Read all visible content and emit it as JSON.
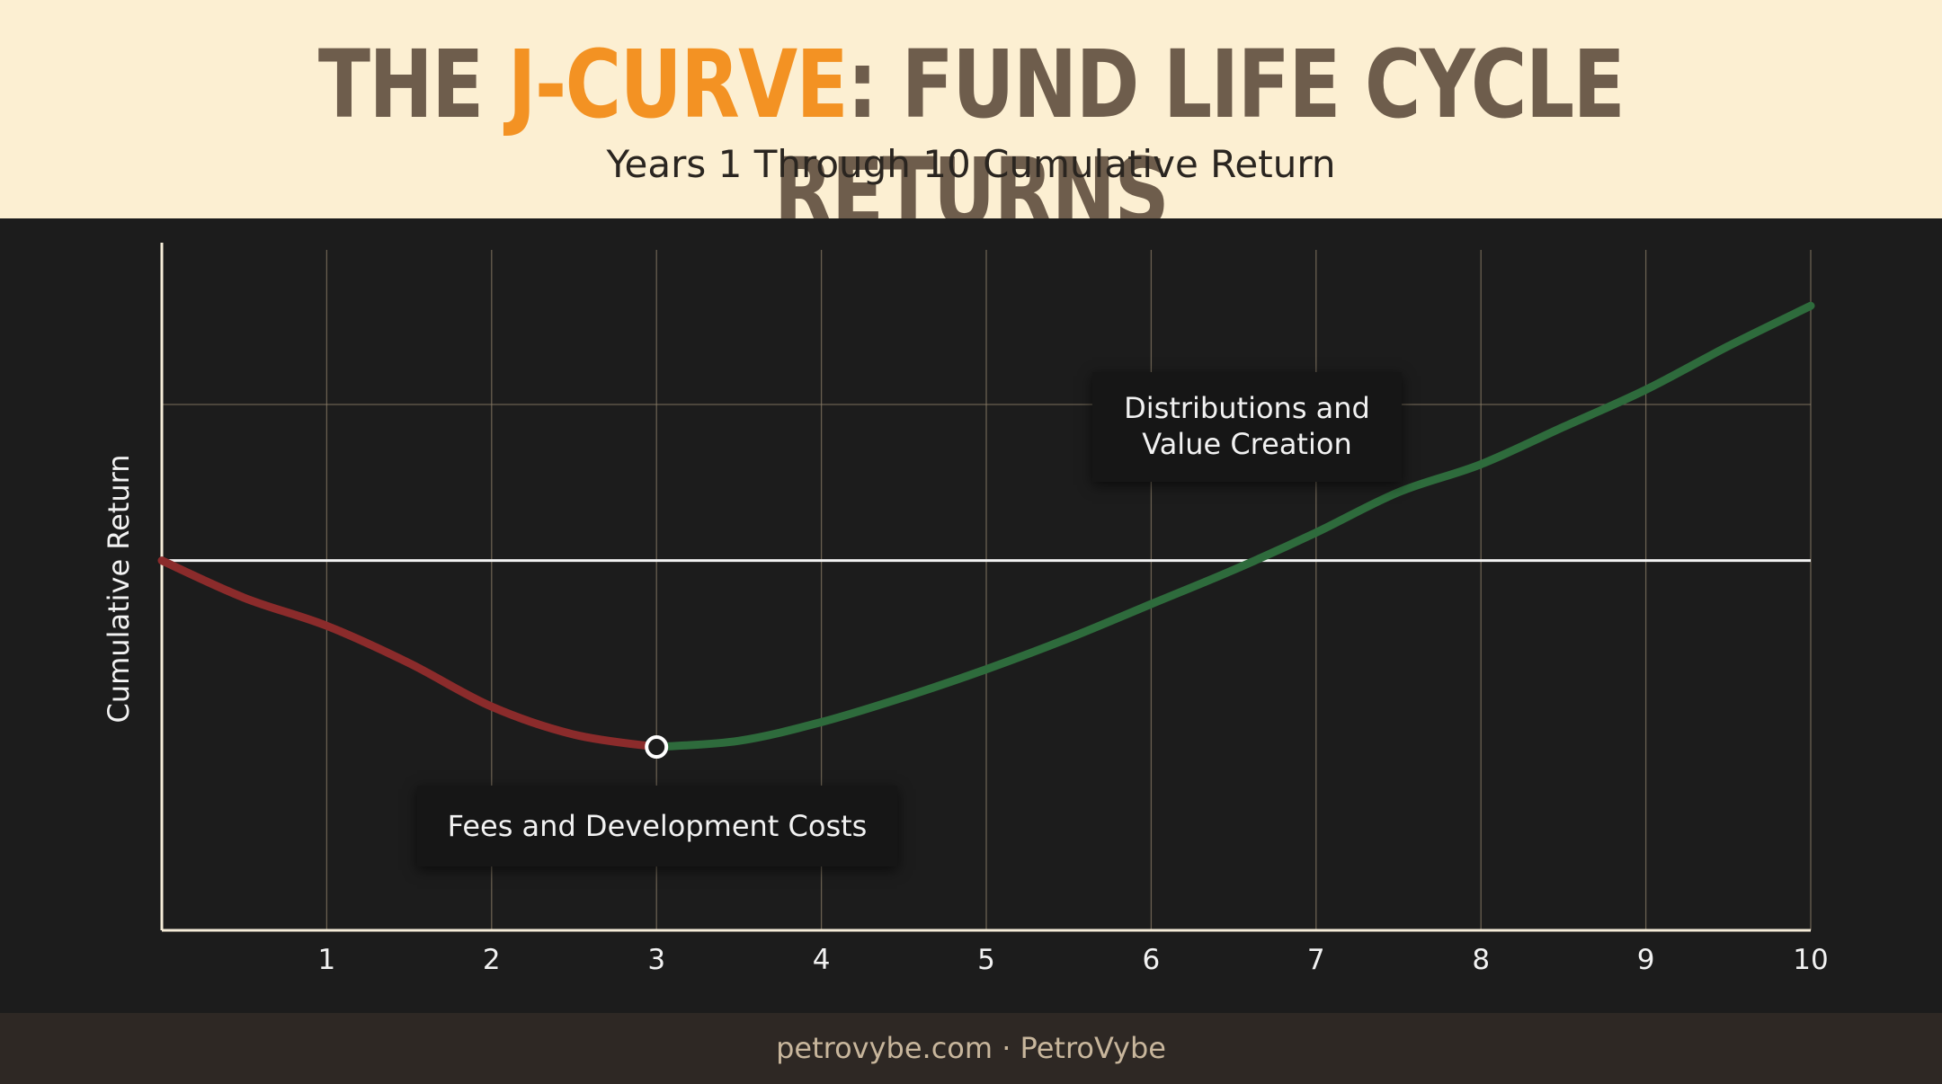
{
  "header": {
    "title_part1": "THE ",
    "title_accent": "J-CURVE",
    "title_part2": ": FUND LIFE CYCLE RETURNS",
    "subtitle": "Years 1 Through 10 Cumulative Return"
  },
  "footer": {
    "text": "petrovybe.com · PetroVybe"
  },
  "colors": {
    "header_bg": "#fcefd2",
    "title": "#6e5d4c",
    "accent": "#f39223",
    "chart_bg": "#1c1c1c",
    "grid": "#8a7c66",
    "axis": "#f5ecd8",
    "zero_line": "#f2f2f2",
    "negative_series": "#8b2b2b",
    "positive_series": "#2e6b3c"
  },
  "chart_data": {
    "type": "line",
    "title": "THE J-CURVE: FUND LIFE CYCLE RETURNS",
    "subtitle": "Years 1 Through 10 Cumulative Return",
    "xlabel": "",
    "ylabel": "Cumulative Return",
    "xlim": [
      0,
      10
    ],
    "ylim": [
      -1.19,
      1.0
    ],
    "xticks": [
      "1",
      "2",
      "3",
      "4",
      "5",
      "6",
      "7",
      "8",
      "9",
      "10"
    ],
    "grid": true,
    "series": [
      {
        "color": "#8b2b2b",
        "x": [
          0,
          0.5,
          1,
          1.5,
          2,
          2.5,
          3
        ],
        "y": [
          0,
          -0.12,
          -0.21,
          -0.33,
          -0.47,
          -0.56,
          -0.6
        ]
      },
      {
        "color": "#2e6b3c",
        "x": [
          3,
          3.5,
          4,
          4.5,
          5,
          5.5,
          6,
          6.5,
          7,
          7.5,
          8,
          8.5,
          9,
          9.5,
          10
        ],
        "y": [
          -0.6,
          -0.58,
          -0.52,
          -0.44,
          -0.35,
          -0.25,
          -0.14,
          -0.03,
          0.09,
          0.22,
          0.31,
          0.43,
          0.55,
          0.69,
          0.82
        ]
      }
    ],
    "markers": [
      {
        "x": 3,
        "y": -0.6
      }
    ],
    "annotations": [
      {
        "text": "Fees and Development Costs"
      },
      {
        "text": "Distributions and\nValue Creation"
      }
    ]
  }
}
